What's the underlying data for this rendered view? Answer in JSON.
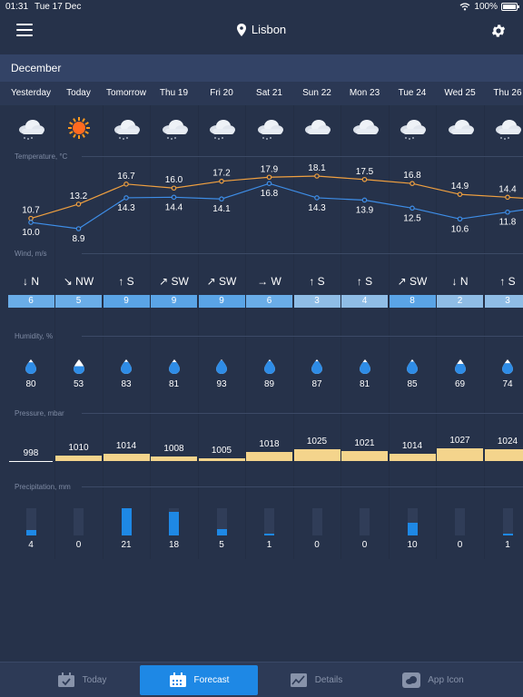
{
  "status": {
    "time": "01:31",
    "date": "Tue 17 Dec",
    "battery": "100%",
    "battery_level": 1.0
  },
  "header": {
    "location": "Lisbon",
    "month": "December"
  },
  "days": [
    {
      "label": "Yesterday",
      "icon": "cloud-drizzle-icon",
      "wind_dir": "↓ N",
      "wind_speed": "6",
      "humidity": "80",
      "humidity_level": 0.8,
      "pressure": "998",
      "precip": "4",
      "precip_level": 0.19
    },
    {
      "label": "Today",
      "icon": "sun-icon",
      "wind_dir": "↘ NW",
      "wind_speed": "5",
      "humidity": "53",
      "humidity_level": 0.53,
      "pressure": "1010",
      "precip": "0",
      "precip_level": 0
    },
    {
      "label": "Tomorrow",
      "icon": "cloud-drizzle-icon",
      "wind_dir": "↑ S",
      "wind_speed": "9",
      "humidity": "83",
      "humidity_level": 0.83,
      "pressure": "1014",
      "precip": "21",
      "precip_level": 1.0
    },
    {
      "label": "Thu 19",
      "icon": "cloud-drizzle-icon",
      "wind_dir": "↗ SW",
      "wind_speed": "9",
      "humidity": "81",
      "humidity_level": 0.81,
      "pressure": "1008",
      "precip": "18",
      "precip_level": 0.86
    },
    {
      "label": "Fri 20",
      "icon": "cloud-drizzle-icon",
      "wind_dir": "↗ SW",
      "wind_speed": "9",
      "humidity": "93",
      "humidity_level": 0.93,
      "pressure": "1005",
      "precip": "5",
      "precip_level": 0.24
    },
    {
      "label": "Sat 21",
      "icon": "cloud-drizzle-icon",
      "wind_dir": "→ W",
      "wind_speed": "6",
      "humidity": "89",
      "humidity_level": 0.89,
      "pressure": "1018",
      "precip": "1",
      "precip_level": 0.05
    },
    {
      "label": "Sun 22",
      "icon": "cloud-icon",
      "wind_dir": "↑ S",
      "wind_speed": "3",
      "humidity": "87",
      "humidity_level": 0.87,
      "pressure": "1025",
      "precip": "0",
      "precip_level": 0
    },
    {
      "label": "Mon 23",
      "icon": "cloud-icon",
      "wind_dir": "↑ S",
      "wind_speed": "4",
      "humidity": "81",
      "humidity_level": 0.81,
      "pressure": "1021",
      "precip": "0",
      "precip_level": 0
    },
    {
      "label": "Tue 24",
      "icon": "cloud-drizzle-icon",
      "wind_dir": "↗ SW",
      "wind_speed": "8",
      "humidity": "85",
      "humidity_level": 0.85,
      "pressure": "1014",
      "precip": "10",
      "precip_level": 0.48
    },
    {
      "label": "Wed 25",
      "icon": "cloud-icon",
      "wind_dir": "↓ N",
      "wind_speed": "2",
      "humidity": "69",
      "humidity_level": 0.69,
      "pressure": "1027",
      "precip": "0",
      "precip_level": 0
    },
    {
      "label": "Thu 26",
      "icon": "cloud-drizzle-icon",
      "wind_dir": "↑ S",
      "wind_speed": "3",
      "humidity": "74",
      "humidity_level": 0.74,
      "pressure": "1024",
      "precip": "1",
      "precip_level": 0.05
    }
  ],
  "sections": {
    "temperature": "Temperature, °C",
    "wind": "Wind, m/s",
    "humidity": "Humidity, %",
    "pressure": "Pressure, mbar",
    "precipitation": "Precipitation, mm"
  },
  "chart_data": {
    "type": "line",
    "x": [
      "Yesterday",
      "Today",
      "Tomorrow",
      "Thu 19",
      "Fri 20",
      "Sat 21",
      "Sun 22",
      "Mon 23",
      "Tue 24",
      "Wed 25",
      "Thu 26"
    ],
    "series": [
      {
        "role": "max",
        "values": [
          10.7,
          13.2,
          16.7,
          16.0,
          17.2,
          17.9,
          18.1,
          17.5,
          16.8,
          14.9,
          14.4
        ],
        "labels": [
          "10.7",
          "13.2",
          "16.7",
          "16.0",
          "17.2",
          "17.9",
          "18.1",
          "17.5",
          "16.8",
          "14.9",
          "14.4"
        ],
        "color": "#f0a040"
      },
      {
        "role": "min",
        "values": [
          10.0,
          8.9,
          14.3,
          14.4,
          14.1,
          16.8,
          14.3,
          13.9,
          12.5,
          10.6,
          11.8
        ],
        "labels": [
          "10.0",
          "8.9",
          "14.3",
          "14.4",
          "14.1",
          "16.8",
          "14.3",
          "13.9",
          "12.5",
          "10.6",
          "11.8"
        ],
        "color": "#3e8ee8"
      }
    ],
    "ylim": [
      8.9,
      18.1
    ]
  },
  "pressure_range": [
    998,
    1027
  ],
  "tabs": [
    {
      "label": "Today",
      "icon": "calendar-check-icon",
      "active": false
    },
    {
      "label": "Forecast",
      "icon": "calendar-grid-icon",
      "active": true
    },
    {
      "label": "Details",
      "icon": "chart-line-icon",
      "active": false
    },
    {
      "label": "App Icon",
      "icon": "cloud-icon",
      "active": false
    }
  ],
  "colors": {
    "background": "#26324a",
    "accent": "#1e88e5",
    "max_temp": "#f0a040",
    "min_temp": "#3e8ee8",
    "pressure_bar": "#f4d48c"
  }
}
